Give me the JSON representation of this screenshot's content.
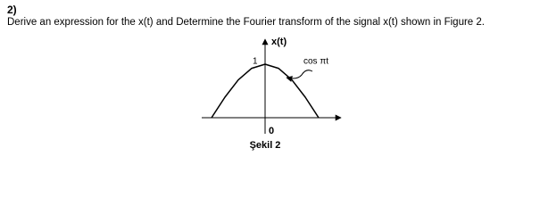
{
  "question": {
    "number": "2)",
    "text": "Derive an expression for the x(t) and Determine the Fourier transform of the signal x(t) shown in Figure 2."
  },
  "figure": {
    "y_label": "x(t)",
    "peak_label": "1",
    "curve_label": "cos πt",
    "origin_label": "0",
    "caption": "Şekil 2"
  }
}
